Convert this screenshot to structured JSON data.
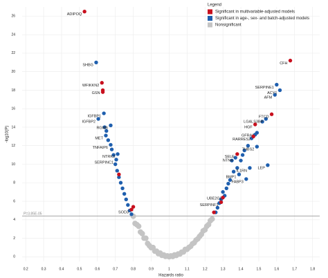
{
  "chart_data": {
    "type": "scatter",
    "x_label": "Hazards ratio",
    "y_label": "-log10(P)",
    "xlim": [
      0.18,
      1.84
    ],
    "ylim": [
      -0.5,
      27
    ],
    "xticks": [
      0.2,
      0.3,
      0.4,
      0.5,
      0.6,
      0.7,
      0.8,
      0.9,
      1.0,
      1.1,
      1.2,
      1.3,
      1.4,
      1.5,
      1.6,
      1.7,
      1.8
    ],
    "yticks": [
      0,
      2,
      4,
      6,
      8,
      10,
      12,
      14,
      16,
      18,
      20,
      22,
      24,
      26
    ],
    "grid": true,
    "legend_title": "Legend",
    "legend_position": "top-right",
    "threshold": {
      "value": 4.41,
      "label": "P=3.85E-05"
    },
    "series": [
      {
        "name": "Nonsignificant",
        "color": "#c4c4c4",
        "x": [
          0.8,
          0.82,
          0.84,
          0.86,
          0.88,
          0.9,
          0.92,
          0.94,
          0.96,
          0.98,
          1.0,
          1.02,
          1.04,
          1.06,
          1.08,
          1.1,
          1.12,
          1.14,
          1.16,
          1.18,
          1.2,
          1.22,
          1.24,
          0.81,
          0.83,
          0.85,
          0.87,
          0.89,
          0.91,
          0.93,
          0.95,
          0.97,
          0.99,
          1.01,
          1.03,
          1.05,
          1.07,
          1.09,
          1.11,
          1.13,
          1.15,
          1.17,
          1.19,
          1.21,
          1.23
        ],
        "y": [
          4.38,
          3.47,
          2.68,
          2.01,
          1.44,
          0.98,
          0.61,
          0.34,
          0.15,
          0.04,
          0.0,
          0.03,
          0.14,
          0.3,
          0.52,
          0.8,
          1.13,
          1.51,
          1.94,
          2.42,
          2.92,
          3.48,
          4.08,
          3.6,
          3.3,
          2.5,
          2.0,
          1.2,
          1.0,
          0.6,
          0.4,
          0.2,
          0.1,
          0.1,
          0.2,
          0.3,
          0.5,
          0.8,
          1.0,
          1.4,
          1.8,
          2.2,
          2.8,
          3.3,
          3.9
        ]
      },
      {
        "name": "Significant in age-, sex- and batch-adjusted models",
        "color": "#1f5fae",
        "x": [
          0.593,
          0.636,
          0.605,
          0.674,
          0.647,
          0.674,
          0.713,
          0.705,
          1.618,
          1.59,
          1.54,
          1.37,
          1.49,
          1.45,
          1.55,
          1.43,
          1.31,
          1.39,
          1.49,
          0.78,
          0.77,
          0.76,
          0.75,
          0.74,
          0.73,
          0.72,
          0.71,
          0.7,
          0.69,
          0.68,
          0.66,
          0.65,
          0.64,
          0.79,
          1.26,
          1.27,
          1.28,
          1.29,
          1.3,
          1.32,
          1.33,
          1.34,
          1.36,
          1.38,
          1.4,
          1.41,
          1.42,
          1.44,
          1.46,
          1.48,
          1.52,
          1.35,
          1.6
        ],
        "y": [
          21.0,
          15.5,
          14.9,
          14.2,
          13.1,
          12.1,
          11.1,
          10.5,
          18.0,
          17.5,
          14.9,
          10.7,
          11.9,
          9.6,
          9.9,
          8.4,
          6.6,
          8.9,
          13.4,
          5.0,
          5.6,
          6.2,
          6.8,
          7.4,
          8.0,
          8.6,
          9.3,
          10.0,
          11.0,
          11.6,
          12.6,
          13.6,
          14.0,
          4.6,
          4.8,
          5.3,
          5.8,
          6.2,
          7.0,
          7.4,
          7.9,
          8.3,
          9.2,
          9.6,
          10.4,
          11.0,
          11.5,
          12.0,
          12.8,
          13.2,
          14.6,
          10.4,
          18.6
        ],
        "labels": [
          "SHBG",
          "IGFBP1",
          "IGFBP2",
          "RGMB",
          "MET",
          "TNFAIP6",
          "NTRK3",
          "SERPINC1",
          "ACY1",
          "AFM",
          "LGALS3BP",
          "NTN4",
          "THBS2",
          "IL1RN",
          "LEP",
          "FABP3",
          "UBE2G2",
          "BMP1",
          "GFRA1",
          null,
          null,
          null,
          null,
          null,
          null,
          null,
          null,
          null,
          null,
          null,
          null,
          null,
          null,
          null,
          null,
          null,
          null,
          null,
          null,
          null,
          null,
          null,
          null,
          null,
          null,
          null,
          null,
          null,
          null,
          null,
          null,
          null,
          "SERPINE1"
        ]
      },
      {
        "name": "Significant in multivariable-adjusted models",
        "color": "#c8101e",
        "x": [
          0.528,
          0.625,
          0.63,
          0.63,
          1.676,
          1.572,
          1.48,
          1.38,
          0.79,
          1.29,
          0.72,
          0.8,
          1.25,
          1.47,
          1.3
        ],
        "y": [
          26.5,
          18.8,
          18.0,
          17.8,
          21.2,
          15.4,
          14.3,
          11.1,
          5.1,
          5.9,
          8.9,
          5.4,
          4.8,
          13.0,
          6.4
        ],
        "labels": [
          "ADIPOQ",
          "WFIKKN2",
          "GSN",
          null,
          "CFH",
          "FTCD",
          "HGF",
          "SELE",
          "SOD3",
          "SERPINF1",
          null,
          null,
          null,
          "RARRES2",
          null
        ]
      }
    ]
  }
}
